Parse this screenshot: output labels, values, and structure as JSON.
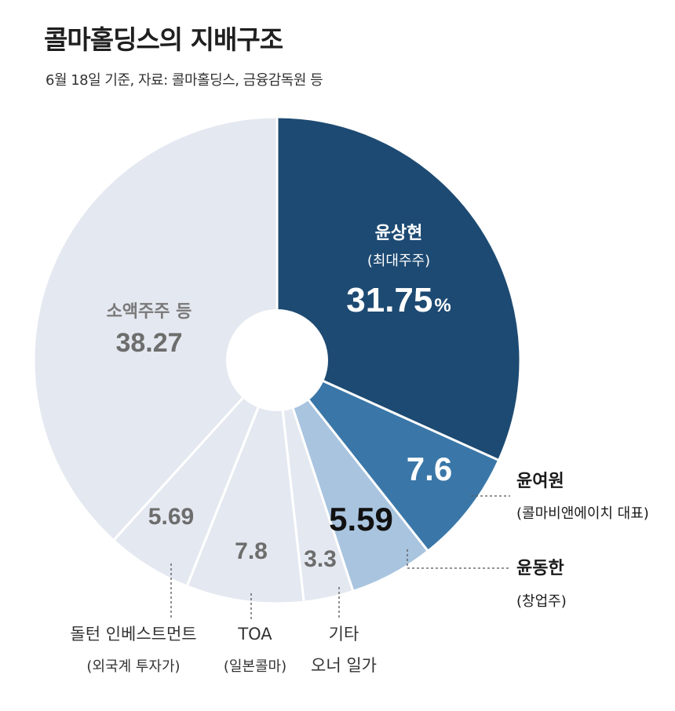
{
  "title": "콜마홀딩스의 지배구조",
  "subtitle": "6월 18일 기준, 자료: 콜마홀딩스, 금융감독원 등",
  "chart_data": {
    "type": "pie",
    "donut": true,
    "start": "12 o'clock, clockwise",
    "slices": [
      {
        "label": "윤상현",
        "note": "(최대주주)",
        "value": 31.75,
        "display": "31.75",
        "unit": "%",
        "color": "#1d4a72",
        "label_placement": "inside"
      },
      {
        "label": "윤여원",
        "note": "(콜마비앤에이치 대표)",
        "value": 7.6,
        "display": "7.6",
        "color": "#3a77a8",
        "label_placement": "outside-right"
      },
      {
        "label": "윤동한",
        "note": "(창업주)",
        "value": 5.59,
        "display": "5.59",
        "color": "#a9c4df",
        "label_placement": "outside-right"
      },
      {
        "label": "기타 오너 일가",
        "label_lines": [
          "기타",
          "오너 일가"
        ],
        "value": 3.3,
        "display": "3.3",
        "color": "#e4e8f0",
        "label_placement": "below"
      },
      {
        "label": "TOA",
        "note": "(일본콜마)",
        "value": 7.8,
        "display": "7.8",
        "color": "#e4e8f0",
        "label_placement": "below"
      },
      {
        "label": "돌턴 인베스트먼트",
        "note": "(외국계 투자가)",
        "value": 5.69,
        "display": "5.69",
        "color": "#e4e8f0",
        "label_placement": "below"
      },
      {
        "label": "소액주주 등",
        "value": 38.27,
        "display": "38.27",
        "color": "#e4e8f0",
        "label_placement": "inside"
      }
    ]
  }
}
